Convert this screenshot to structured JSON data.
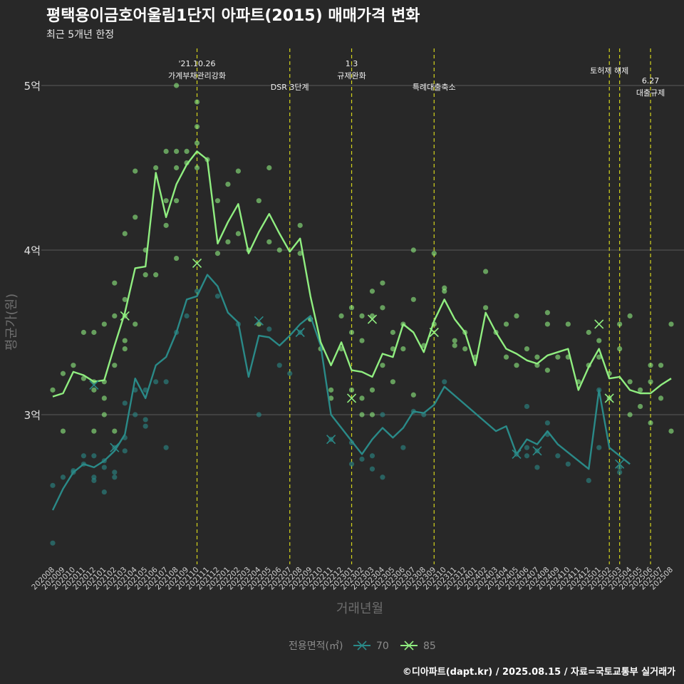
{
  "chart_data": {
    "type": "line",
    "title": "평택용이금호어울림1단지 아파트(2015) 매매가격 변화",
    "subtitle": "최근 5개년 한정",
    "xlabel": "거래년월",
    "ylabel": "평균가(원)",
    "caption": "©디아파트(dapt.kr) / 2025.08.15 / 자료=국토교통부 실거래가",
    "categories": [
      "202008",
      "202009",
      "202010",
      "202011",
      "202012",
      "202101",
      "202102",
      "202103",
      "202104",
      "202105",
      "202106",
      "202107",
      "202108",
      "202109",
      "202110",
      "202111",
      "202112",
      "202201",
      "202202",
      "202203",
      "202204",
      "202205",
      "202206",
      "202207",
      "202208",
      "202209",
      "202210",
      "202211",
      "202212",
      "202301",
      "202302",
      "202303",
      "202304",
      "202305",
      "202306",
      "202307",
      "202308",
      "202309",
      "202310",
      "202311",
      "202312",
      "202401",
      "202402",
      "202403",
      "202404",
      "202405",
      "202406",
      "202407",
      "202408",
      "202409",
      "202410",
      "202411",
      "202412",
      "202501",
      "202502",
      "202503",
      "202504",
      "202505",
      "202506",
      "202507",
      "202508"
    ],
    "yticks": [
      {
        "value": 3.0,
        "label": "3억"
      },
      {
        "value": 4.0,
        "label": "4억"
      },
      {
        "value": 5.0,
        "label": "5억"
      }
    ],
    "ylim": [
      2.1,
      5.3
    ],
    "grid": true,
    "legend": {
      "title": "전용면적(㎡)",
      "position": "bottom"
    },
    "series": [
      {
        "name": "70",
        "color": "#2a8a88",
        "values": [
          2.42,
          2.55,
          2.65,
          2.7,
          2.68,
          2.72,
          2.78,
          2.88,
          3.22,
          3.1,
          3.3,
          3.35,
          3.5,
          3.7,
          3.72,
          3.85,
          3.78,
          3.62,
          3.56,
          3.23,
          3.48,
          3.47,
          3.42,
          3.48,
          3.55,
          3.6,
          3.42,
          3.0,
          2.92,
          2.84,
          2.76,
          2.85,
          2.92,
          2.86,
          2.92,
          3.02,
          3.01,
          3.06,
          3.17,
          null,
          null,
          null,
          null,
          2.9,
          2.93,
          2.76,
          2.85,
          2.82,
          2.9,
          2.82,
          null,
          null,
          2.67,
          3.15,
          2.8,
          2.75,
          2.7,
          null,
          null,
          null,
          null
        ],
        "points": [
          [
            0,
            2.57
          ],
          [
            0,
            2.22
          ],
          [
            1,
            2.62
          ],
          [
            2,
            2.65
          ],
          [
            2,
            2.66
          ],
          [
            3,
            2.7
          ],
          [
            3,
            2.75
          ],
          [
            4,
            2.6
          ],
          [
            4,
            2.62
          ],
          [
            4,
            2.75
          ],
          [
            5,
            2.53
          ],
          [
            5,
            2.72
          ],
          [
            5,
            2.68
          ],
          [
            6,
            2.62
          ],
          [
            6,
            2.65
          ],
          [
            6,
            2.8
          ],
          [
            7,
            2.78
          ],
          [
            7,
            2.86
          ],
          [
            7,
            3.07
          ],
          [
            8,
            3.15
          ],
          [
            8,
            3.0
          ],
          [
            9,
            2.97
          ],
          [
            9,
            3.15
          ],
          [
            9,
            2.93
          ],
          [
            10,
            3.2
          ],
          [
            11,
            2.8
          ],
          [
            11,
            3.2
          ],
          [
            12,
            3.5
          ],
          [
            13,
            3.6
          ],
          [
            14,
            3.75
          ],
          [
            16,
            3.72
          ],
          [
            18,
            3.55
          ],
          [
            20,
            3.0
          ],
          [
            21,
            3.52
          ],
          [
            22,
            3.3
          ],
          [
            23,
            3.25
          ],
          [
            24,
            3.5
          ],
          [
            25,
            3.58
          ],
          [
            27,
            2.85
          ],
          [
            29,
            2.83
          ],
          [
            29,
            2.7
          ],
          [
            30,
            2.73
          ],
          [
            31,
            2.67
          ],
          [
            31,
            2.75
          ],
          [
            32,
            2.62
          ],
          [
            32,
            3.0
          ],
          [
            34,
            2.8
          ],
          [
            35,
            3.02
          ],
          [
            36,
            3.0
          ],
          [
            38,
            3.2
          ],
          [
            45,
            2.76
          ],
          [
            46,
            2.8
          ],
          [
            46,
            3.05
          ],
          [
            46,
            2.75
          ],
          [
            47,
            2.68
          ],
          [
            47,
            2.78
          ],
          [
            48,
            2.88
          ],
          [
            48,
            2.95
          ],
          [
            49,
            2.75
          ],
          [
            50,
            2.7
          ],
          [
            52,
            2.6
          ],
          [
            53,
            3.15
          ],
          [
            53,
            2.8
          ],
          [
            55,
            2.68
          ],
          [
            55,
            2.65
          ]
        ],
        "markers": [
          [
            4,
            3.18
          ],
          [
            6,
            2.8
          ],
          [
            20,
            3.57
          ],
          [
            24,
            3.5
          ],
          [
            27,
            2.85
          ],
          [
            45,
            2.76
          ],
          [
            47,
            2.78
          ],
          [
            55,
            2.7
          ]
        ]
      },
      {
        "name": "85",
        "color": "#90ee80",
        "values": [
          3.11,
          3.13,
          3.26,
          3.24,
          3.2,
          3.21,
          3.42,
          3.62,
          3.89,
          3.9,
          4.47,
          4.2,
          4.4,
          4.52,
          4.6,
          4.55,
          4.04,
          4.17,
          4.28,
          3.98,
          4.11,
          4.22,
          4.1,
          3.99,
          4.07,
          3.72,
          3.44,
          3.3,
          3.44,
          3.27,
          3.26,
          3.23,
          3.37,
          3.35,
          3.55,
          3.5,
          3.38,
          3.57,
          3.7,
          3.58,
          3.5,
          3.3,
          3.62,
          3.5,
          3.4,
          3.37,
          3.33,
          3.31,
          3.36,
          3.38,
          3.4,
          3.15,
          3.29,
          3.4,
          3.22,
          3.23,
          3.15,
          3.13,
          3.13,
          3.18,
          3.22
        ],
        "points": [
          [
            0,
            3.15
          ],
          [
            1,
            2.9
          ],
          [
            1,
            3.25
          ],
          [
            2,
            3.3
          ],
          [
            3,
            3.22
          ],
          [
            3,
            3.5
          ],
          [
            4,
            3.15
          ],
          [
            4,
            3.2
          ],
          [
            4,
            3.5
          ],
          [
            4,
            2.9
          ],
          [
            5,
            3.1
          ],
          [
            5,
            3.2
          ],
          [
            5,
            3.55
          ],
          [
            5,
            3.0
          ],
          [
            6,
            3.3
          ],
          [
            6,
            3.6
          ],
          [
            6,
            3.8
          ],
          [
            6,
            2.9
          ],
          [
            7,
            3.45
          ],
          [
            7,
            3.6
          ],
          [
            7,
            4.1
          ],
          [
            7,
            3.7
          ],
          [
            7,
            3.4
          ],
          [
            8,
            4.48
          ],
          [
            8,
            4.2
          ],
          [
            8,
            3.55
          ],
          [
            9,
            4.0
          ],
          [
            9,
            3.85
          ],
          [
            10,
            4.5
          ],
          [
            10,
            3.85
          ],
          [
            11,
            4.6
          ],
          [
            11,
            4.3
          ],
          [
            11,
            4.15
          ],
          [
            12,
            4.6
          ],
          [
            12,
            4.5
          ],
          [
            12,
            4.3
          ],
          [
            12,
            3.95
          ],
          [
            12,
            5.0
          ],
          [
            13,
            4.6
          ],
          [
            13,
            4.53
          ],
          [
            14,
            4.9
          ],
          [
            14,
            4.75
          ],
          [
            14,
            4.65
          ],
          [
            14,
            4.5
          ],
          [
            15,
            4.55
          ],
          [
            16,
            4.3
          ],
          [
            16,
            3.98
          ],
          [
            17,
            4.4
          ],
          [
            17,
            4.05
          ],
          [
            18,
            4.48
          ],
          [
            18,
            4.1
          ],
          [
            19,
            4.0
          ],
          [
            20,
            4.3
          ],
          [
            20,
            3.55
          ],
          [
            21,
            4.5
          ],
          [
            21,
            4.05
          ],
          [
            22,
            4.0
          ],
          [
            24,
            4.15
          ],
          [
            24,
            3.98
          ],
          [
            25,
            3.58
          ],
          [
            26,
            3.4
          ],
          [
            27,
            3.15
          ],
          [
            27,
            3.1
          ],
          [
            28,
            3.6
          ],
          [
            28,
            3.4
          ],
          [
            29,
            3.65
          ],
          [
            29,
            3.5
          ],
          [
            29,
            3.15
          ],
          [
            30,
            3.6
          ],
          [
            30,
            3.45
          ],
          [
            30,
            3.1
          ],
          [
            30,
            3.0
          ],
          [
            31,
            3.75
          ],
          [
            31,
            3.6
          ],
          [
            31,
            3.15
          ],
          [
            31,
            3.0
          ],
          [
            32,
            3.8
          ],
          [
            32,
            3.65
          ],
          [
            32,
            3.3
          ],
          [
            33,
            3.5
          ],
          [
            33,
            3.4
          ],
          [
            33,
            3.2
          ],
          [
            34,
            3.55
          ],
          [
            34,
            3.4
          ],
          [
            35,
            4.0
          ],
          [
            35,
            3.7
          ],
          [
            35,
            3.12
          ],
          [
            36,
            3.42
          ],
          [
            37,
            3.98
          ],
          [
            37,
            3.55
          ],
          [
            38,
            3.75
          ],
          [
            38,
            3.77
          ],
          [
            39,
            3.45
          ],
          [
            39,
            3.42
          ],
          [
            40,
            3.5
          ],
          [
            40,
            3.4
          ],
          [
            41,
            3.35
          ],
          [
            42,
            3.87
          ],
          [
            42,
            3.65
          ],
          [
            43,
            3.5
          ],
          [
            44,
            3.55
          ],
          [
            44,
            3.35
          ],
          [
            45,
            3.6
          ],
          [
            45,
            3.3
          ],
          [
            46,
            3.4
          ],
          [
            47,
            3.35
          ],
          [
            47,
            3.3
          ],
          [
            48,
            3.62
          ],
          [
            48,
            3.55
          ],
          [
            48,
            3.27
          ],
          [
            49,
            3.35
          ],
          [
            50,
            3.55
          ],
          [
            50,
            3.35
          ],
          [
            51,
            3.2
          ],
          [
            52,
            3.5
          ],
          [
            52,
            3.3
          ],
          [
            53,
            3.45
          ],
          [
            53,
            3.35
          ],
          [
            54,
            3.25
          ],
          [
            54,
            3.1
          ],
          [
            55,
            3.55
          ],
          [
            55,
            3.4
          ],
          [
            56,
            3.6
          ],
          [
            56,
            3.2
          ],
          [
            56,
            3.0
          ],
          [
            57,
            3.15
          ],
          [
            57,
            3.05
          ],
          [
            58,
            3.3
          ],
          [
            58,
            3.2
          ],
          [
            58,
            2.95
          ],
          [
            59,
            3.3
          ],
          [
            59,
            3.1
          ],
          [
            60,
            3.55
          ],
          [
            60,
            2.9
          ]
        ],
        "markers": [
          [
            7,
            3.6
          ],
          [
            14,
            3.92
          ],
          [
            29,
            3.1
          ],
          [
            31,
            3.58
          ],
          [
            37,
            3.5
          ],
          [
            53,
            3.55
          ],
          [
            54,
            3.1
          ]
        ]
      }
    ],
    "events": [
      {
        "at": 14.0,
        "lines": [
          "'21.10.26",
          "가계부채관리강화"
        ]
      },
      {
        "at": 23.0,
        "lines": [
          "DSR 3단계"
        ]
      },
      {
        "at": 29.0,
        "lines": [
          "1.3",
          "규제완화"
        ]
      },
      {
        "at": 37.0,
        "lines": [
          "특례대출축소"
        ]
      },
      {
        "at": 54.0,
        "lines": [
          "토허제 해제"
        ]
      },
      {
        "at": 55.0,
        "lines": []
      },
      {
        "at": 58.0,
        "lines": [
          "6.27",
          "대출규제"
        ]
      }
    ]
  }
}
